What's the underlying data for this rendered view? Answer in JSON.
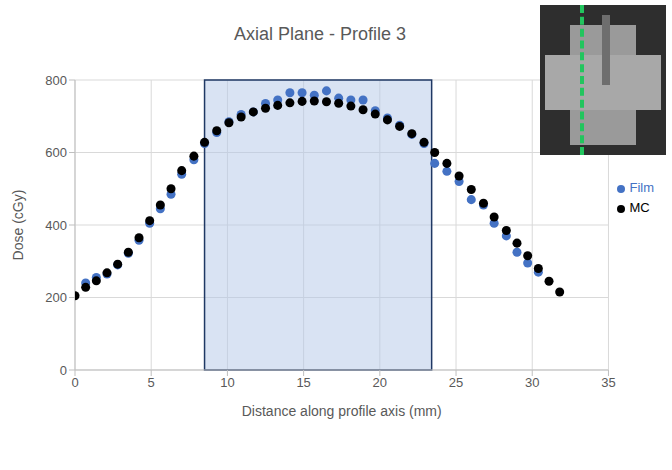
{
  "chart_data": {
    "type": "scatter",
    "title": "Axial Plane - Profile 3",
    "x_label": "Distance along profile axis (mm)",
    "y_label": "Dose (cGy)",
    "xlim": [
      0,
      35
    ],
    "xticks": [
      0,
      5,
      10,
      15,
      20,
      25,
      30,
      35
    ],
    "ylim": [
      0,
      800
    ],
    "yticks": [
      0,
      200,
      400,
      600,
      800
    ],
    "grid": true,
    "legend": "right",
    "shaded_x": [
      8.5,
      23.4
    ],
    "series": [
      {
        "name": "Film",
        "color": "#4472c4",
        "marker": "circle",
        "x": [
          0.7,
          1.4,
          2.1,
          2.8,
          3.5,
          4.2,
          4.9,
          5.6,
          6.3,
          7.0,
          7.8,
          8.5,
          9.3,
          10.1,
          10.9,
          11.7,
          12.5,
          13.3,
          14.1,
          14.9,
          15.7,
          16.5,
          17.3,
          18.1,
          18.9,
          19.7,
          20.5,
          21.3,
          22.1,
          22.9,
          23.6,
          24.4,
          25.2,
          26.0,
          26.8,
          27.5,
          28.3,
          29.0,
          29.7,
          30.4
        ],
        "values": [
          240,
          255,
          265,
          290,
          322,
          358,
          405,
          445,
          485,
          540,
          580,
          625,
          655,
          685,
          705,
          712,
          735,
          745,
          765,
          765,
          758,
          770,
          750,
          745,
          745,
          715,
          695,
          675,
          650,
          625,
          570,
          548,
          520,
          470,
          455,
          405,
          370,
          325,
          295,
          270
        ]
      },
      {
        "name": "MC",
        "color": "#000000",
        "marker": "circle",
        "x": [
          0,
          0.7,
          1.4,
          2.1,
          2.8,
          3.5,
          4.2,
          4.9,
          5.6,
          6.3,
          7.0,
          7.8,
          8.5,
          9.3,
          10.1,
          10.9,
          11.7,
          12.5,
          13.3,
          14.1,
          14.9,
          15.7,
          16.5,
          17.3,
          18.1,
          18.9,
          19.7,
          20.5,
          21.3,
          22.1,
          22.9,
          23.6,
          24.4,
          25.2,
          26.0,
          26.8,
          27.5,
          28.3,
          29.0,
          29.7,
          30.4,
          31.1,
          31.8
        ],
        "values": [
          205,
          228,
          246,
          268,
          292,
          325,
          365,
          412,
          455,
          500,
          550,
          590,
          628,
          660,
          682,
          698,
          712,
          722,
          730,
          737,
          741,
          742,
          740,
          736,
          728,
          718,
          706,
          690,
          672,
          652,
          628,
          600,
          570,
          535,
          498,
          460,
          422,
          385,
          350,
          315,
          280,
          245,
          215
        ]
      }
    ]
  }
}
